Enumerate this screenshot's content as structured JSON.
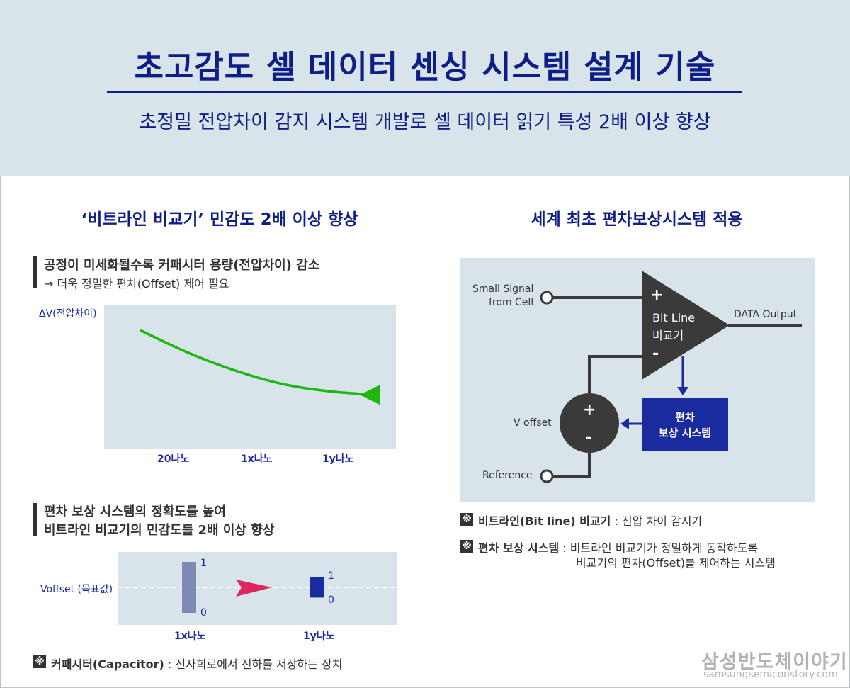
{
  "header": {
    "title": "초고감도 셀 데이터 센싱 시스템 설계 기술",
    "subtitle": "초정밀 전압차이 감지 시스템 개발로 셀 데이터 읽기 특성 2배 이상 향상"
  },
  "left": {
    "section_title": "‘비트라인 비교기’ 민감도 2배 이상 향상",
    "block1": {
      "heading": "공정이 미세화될수록 커패시터 용량(전압차이) 감소",
      "sub": "→ 더욱 정밀한 편차(Offset) 제어 필요"
    },
    "block2": {
      "line1": "편차 보상 시스템의 정확도를 높여",
      "line2": "비트라인 비교기의 민감도를 2배 이상 향상"
    },
    "note": {
      "icon": "※",
      "term": "커패시터(Capacitor)",
      "desc": " : 전자회로에서 전하를 저장하는 장치"
    }
  },
  "right": {
    "section_title": "세계 최초 편차보상시스템 적용",
    "diagram": {
      "input_label_1": "Small Signal",
      "input_label_2": "from Cell",
      "plus": "+",
      "minus": "-",
      "comparator_line1": "Bit Line",
      "comparator_line2": "비교기",
      "output_label": "DATA Output",
      "voffset_label": "V offset",
      "reference_label": "Reference",
      "comp_box_line1": "편차",
      "comp_box_line2": "보상 시스템",
      "circle_plus": "+",
      "circle_minus": "-"
    },
    "notes": [
      {
        "icon": "※",
        "term": "비트라인(Bit line) 비교기",
        "desc": " : 전압 차이 감지기"
      },
      {
        "icon": "※",
        "term": "편차 보상 시스템",
        "desc": " : 비트라인 비교기가 정밀하게 동작하도록",
        "desc2": "비교기의 편차(Offset)를 제어하는 시스템"
      }
    ]
  },
  "chart_data": [
    {
      "type": "line",
      "title": "",
      "ylabel": "ΔV(전압차이)",
      "xlabel": "",
      "categories": [
        "20나노",
        "1x나노",
        "1y나노"
      ],
      "series": [
        {
          "x": [
            0,
            0.2,
            0.4,
            0.6,
            0.8,
            1.0
          ],
          "y": [
            1.0,
            0.72,
            0.5,
            0.33,
            0.24,
            0.2
          ]
        }
      ],
      "line_color": "#1cb80f",
      "grid": false
    },
    {
      "type": "bar",
      "title": "",
      "ylabel": "Voffset (목표값)",
      "categories": [
        "1x나노",
        "1y나노"
      ],
      "ranges": [
        {
          "category": "1x나노",
          "top": "1",
          "bottom": "0",
          "span": 1.0,
          "color": "#8088b6"
        },
        {
          "category": "1y나노",
          "top": "1",
          "bottom": "0",
          "span": 0.4,
          "color": "#1a2ba0"
        }
      ],
      "arrow_color": "#e0245e"
    }
  ],
  "logo": {
    "main": "삼성반도체이야기",
    "sub": "samsungsemiconstory.com"
  }
}
